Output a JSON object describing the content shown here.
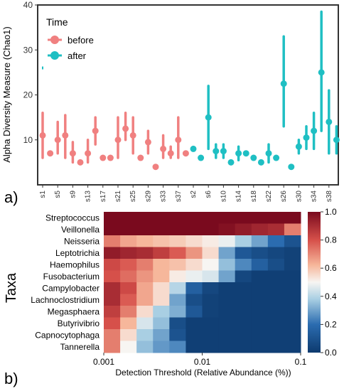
{
  "colors": {
    "before": "#f08080",
    "after": "#1fbfc3",
    "heat_low": "#0d3a6e",
    "heat_mid": "#f7f5f2",
    "heat_high": "#7a0a1e"
  },
  "chart_data": [
    {
      "type": "scatter",
      "panel_label": "a)",
      "ylabel": "Alpha Diversity Measure  (Chao1)",
      "xlabel": "",
      "ylim": [
        0,
        40
      ],
      "yticks": [
        10,
        20,
        30,
        40
      ],
      "grid": false,
      "legend": {
        "title": "Time",
        "placement": "top-left",
        "entries": [
          "before",
          "after"
        ]
      },
      "categories": [
        "s1",
        "s3",
        "s5",
        "s7",
        "s9",
        "s11",
        "s13",
        "s15",
        "s17",
        "s19",
        "s21",
        "s23",
        "s25",
        "s27",
        "s29",
        "s31",
        "s33",
        "s35",
        "s37",
        "s39",
        "s2",
        "s4",
        "s6",
        "s8",
        "s10",
        "s12",
        "s14",
        "s16",
        "s18",
        "s20",
        "s22",
        "s24",
        "s26",
        "s28",
        "s30",
        "s32",
        "s34",
        "s36",
        "s38",
        "s40"
      ],
      "tick_labels": [
        "s1",
        "s5",
        "s9",
        "s13",
        "s17",
        "s21",
        "s25",
        "s29",
        "s33",
        "s37",
        "s2",
        "s6",
        "s10",
        "s14",
        "s18",
        "s22",
        "s26",
        "s30",
        "s34",
        "s38"
      ],
      "series": [
        {
          "name": "before",
          "points": [
            {
              "x": "s1",
              "y": 11,
              "lo": 6,
              "hi": 16
            },
            {
              "x": "s3",
              "y": 7,
              "lo": 7,
              "hi": 7
            },
            {
              "x": "s5",
              "y": 10,
              "lo": 7,
              "hi": 14
            },
            {
              "x": "s7",
              "y": 11,
              "lo": 6,
              "hi": 15.5
            },
            {
              "x": "s9",
              "y": 7,
              "lo": 5,
              "hi": 9.5
            },
            {
              "x": "s11",
              "y": 5,
              "lo": 5,
              "hi": 5
            },
            {
              "x": "s13",
              "y": 7,
              "lo": 5,
              "hi": 10
            },
            {
              "x": "s15",
              "y": 12,
              "lo": 9,
              "hi": 15
            },
            {
              "x": "s17",
              "y": 6,
              "lo": 6,
              "hi": 6
            },
            {
              "x": "s19",
              "y": 6,
              "lo": 6,
              "hi": 6
            },
            {
              "x": "s21",
              "y": 10,
              "lo": 6,
              "hi": 15
            },
            {
              "x": "s23",
              "y": 12.5,
              "lo": 10,
              "hi": 16
            },
            {
              "x": "s25",
              "y": 11,
              "lo": 7,
              "hi": 15
            },
            {
              "x": "s27",
              "y": 6,
              "lo": 6,
              "hi": 6
            },
            {
              "x": "s29",
              "y": 9.5,
              "lo": 7,
              "hi": 12
            },
            {
              "x": "s31",
              "y": 4,
              "lo": 4,
              "hi": 4
            },
            {
              "x": "s33",
              "y": 8,
              "lo": 6,
              "hi": 11
            },
            {
              "x": "s35",
              "y": 7,
              "lo": 6,
              "hi": 8.5
            },
            {
              "x": "s37",
              "y": 10,
              "lo": 6,
              "hi": 15
            },
            {
              "x": "s39",
              "y": 7,
              "lo": 7,
              "hi": 7
            }
          ]
        },
        {
          "name": "after",
          "points": [
            {
              "x": "s2",
              "y": 8,
              "lo": 8,
              "hi": 8
            },
            {
              "x": "s4",
              "y": 6,
              "lo": 6,
              "hi": 6
            },
            {
              "x": "s6",
              "y": 15,
              "lo": 8,
              "hi": 22
            },
            {
              "x": "s8",
              "y": 7.5,
              "lo": 6,
              "hi": 9
            },
            {
              "x": "s10",
              "y": 7.5,
              "lo": 6,
              "hi": 9
            },
            {
              "x": "s12",
              "y": 5,
              "lo": 5,
              "hi": 5
            },
            {
              "x": "s14",
              "y": 7,
              "lo": 5.5,
              "hi": 8.5
            },
            {
              "x": "s16",
              "y": 7,
              "lo": 7,
              "hi": 7
            },
            {
              "x": "s18",
              "y": 6,
              "lo": 6,
              "hi": 6
            },
            {
              "x": "s20",
              "y": 5,
              "lo": 5,
              "hi": 5
            },
            {
              "x": "s22",
              "y": 7,
              "lo": 5,
              "hi": 9
            },
            {
              "x": "s24",
              "y": 6,
              "lo": 6,
              "hi": 6
            },
            {
              "x": "s26",
              "y": 22.5,
              "lo": 13,
              "hi": 33
            },
            {
              "x": "s28",
              "y": 4,
              "lo": 4,
              "hi": 4
            },
            {
              "x": "s30",
              "y": 8.5,
              "lo": 7,
              "hi": 10
            },
            {
              "x": "s32",
              "y": 10.5,
              "lo": 8,
              "hi": 13
            },
            {
              "x": "s34",
              "y": 12,
              "lo": 8,
              "hi": 16
            },
            {
              "x": "s36",
              "y": 25,
              "lo": 12,
              "hi": 38.5
            },
            {
              "x": "s38",
              "y": 14,
              "lo": 7,
              "hi": 21
            },
            {
              "x": "s40",
              "y": 10,
              "lo": 7,
              "hi": 13
            }
          ]
        }
      ],
      "outliers": [
        {
          "x": "s1",
          "y": 26
        }
      ]
    },
    {
      "type": "heatmap",
      "panel_label": "b)",
      "xlabel": "Detection Threshold (Relative Abundance (%))",
      "ylabel": "Taxa",
      "xscale": "log",
      "x_tick_labels": [
        "0.001",
        "0.01",
        "0.1"
      ],
      "colorbar_ticks": [
        "0.0",
        "0.2",
        "0.4",
        "0.6",
        "0.8",
        "1.0"
      ],
      "vmin": 0,
      "vmax": 1,
      "rows": [
        "Streptococcus",
        "Veillonella",
        "Neisseria",
        "Leptotrichia",
        "Haemophilus",
        "Fusobacterium",
        "Campylobacter",
        "Lachnoclostridium",
        "Megasphaera",
        "Butyrivibrio",
        "Capnocytophaga",
        "Tannerella"
      ],
      "values": [
        [
          1,
          1,
          1,
          1,
          1,
          1,
          1,
          1,
          1,
          1,
          1,
          1
        ],
        [
          1,
          1,
          1,
          1,
          1,
          1,
          1,
          0.98,
          0.95,
          0.92,
          0.9,
          0.72
        ],
        [
          0.72,
          0.65,
          0.62,
          0.6,
          0.58,
          0.55,
          0.52,
          0.48,
          0.38,
          0.3,
          0.2,
          0.1
        ],
        [
          0.95,
          0.92,
          0.9,
          0.85,
          0.78,
          0.68,
          0.55,
          0.3,
          0.12,
          0.08,
          0.05,
          0.03
        ],
        [
          0.82,
          0.78,
          0.72,
          0.62,
          0.6,
          0.55,
          0.5,
          0.35,
          0.25,
          0.15,
          0.08,
          0.03
        ],
        [
          0.8,
          0.75,
          0.68,
          0.62,
          0.52,
          0.48,
          0.45,
          0.3,
          0.05,
          0.02,
          0.02,
          0.02
        ],
        [
          0.9,
          0.82,
          0.65,
          0.55,
          0.4,
          0.15,
          0.05,
          0.02,
          0.02,
          0.02,
          0.02,
          0.02
        ],
        [
          0.9,
          0.78,
          0.65,
          0.55,
          0.3,
          0.08,
          0.03,
          0.02,
          0.02,
          0.02,
          0.02,
          0.02
        ],
        [
          0.85,
          0.72,
          0.55,
          0.38,
          0.32,
          0.12,
          0.03,
          0.02,
          0.02,
          0.02,
          0.02,
          0.02
        ],
        [
          0.8,
          0.62,
          0.45,
          0.35,
          0.08,
          0.02,
          0.02,
          0.02,
          0.02,
          0.02,
          0.02,
          0.02
        ],
        [
          0.72,
          0.55,
          0.38,
          0.3,
          0.1,
          0.02,
          0.02,
          0.02,
          0.02,
          0.02,
          0.02,
          0.02
        ],
        [
          0.72,
          0.5,
          0.35,
          0.28,
          0.25,
          0.02,
          0.02,
          0.02,
          0.02,
          0.02,
          0.02,
          0.02
        ]
      ]
    }
  ]
}
